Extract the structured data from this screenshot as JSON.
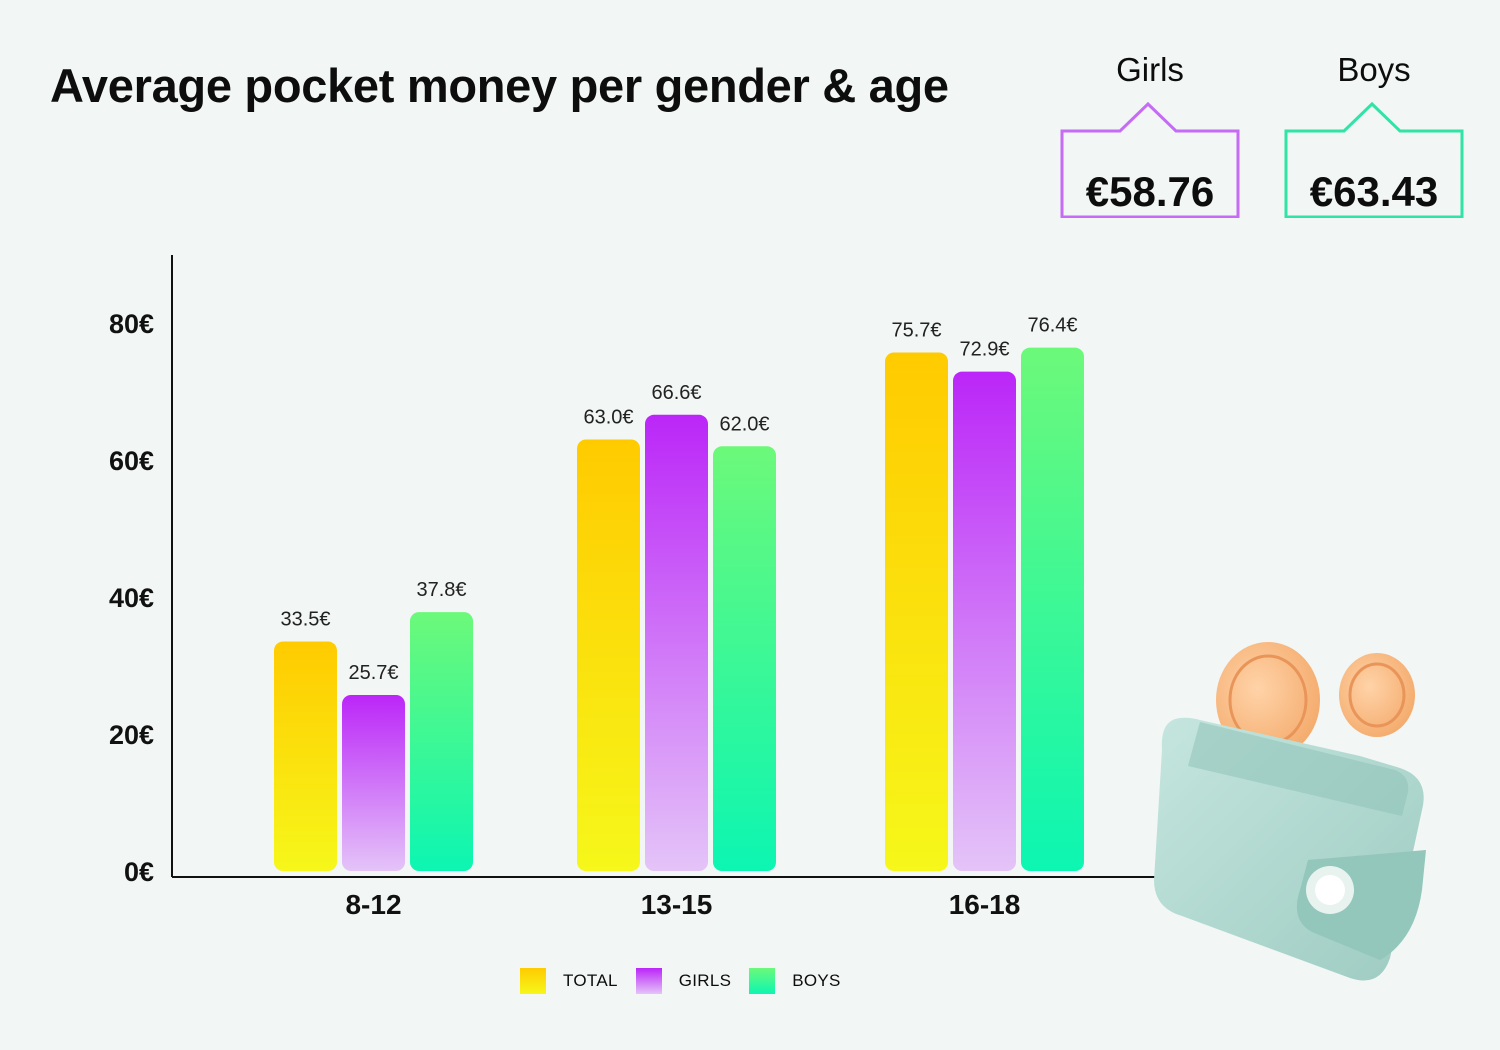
{
  "title": "Average pocket money per gender & age",
  "summary": [
    {
      "label": "Girls",
      "value": "€58.76",
      "color": "#c56bf5"
    },
    {
      "label": "Boys",
      "value": "€63.43",
      "color": "#2fe4a4"
    }
  ],
  "colors": {
    "total": [
      "#ffcb00",
      "#f6f71a"
    ],
    "girls": [
      "#bb26f8",
      "#e4c4f8"
    ],
    "boys": [
      "#6cf97a",
      "#0cf6b2"
    ]
  },
  "chart_data": {
    "type": "bar",
    "title": "Average pocket money per gender & age",
    "categories": [
      "8-12",
      "13-15",
      "16-18"
    ],
    "series": [
      {
        "name": "TOTAL",
        "values": [
          33.5,
          63.0,
          75.7
        ],
        "labels": [
          "33.5€",
          "63.0€",
          "75.7€"
        ]
      },
      {
        "name": "GIRLS",
        "values": [
          25.7,
          66.6,
          72.9
        ],
        "labels": [
          "25.7€",
          "66.6€",
          "72.9€"
        ]
      },
      {
        "name": "BOYS",
        "values": [
          37.8,
          62.0,
          76.4
        ],
        "labels": [
          "37.8€",
          "62.0€",
          "76.4€"
        ]
      }
    ],
    "ylim": [
      0,
      90
    ],
    "yticks": [
      0,
      20,
      40,
      60,
      80
    ],
    "ytick_labels": [
      "0€",
      "20€",
      "40€",
      "60€",
      "80€"
    ],
    "grid": false,
    "legend": "bottom-center"
  }
}
